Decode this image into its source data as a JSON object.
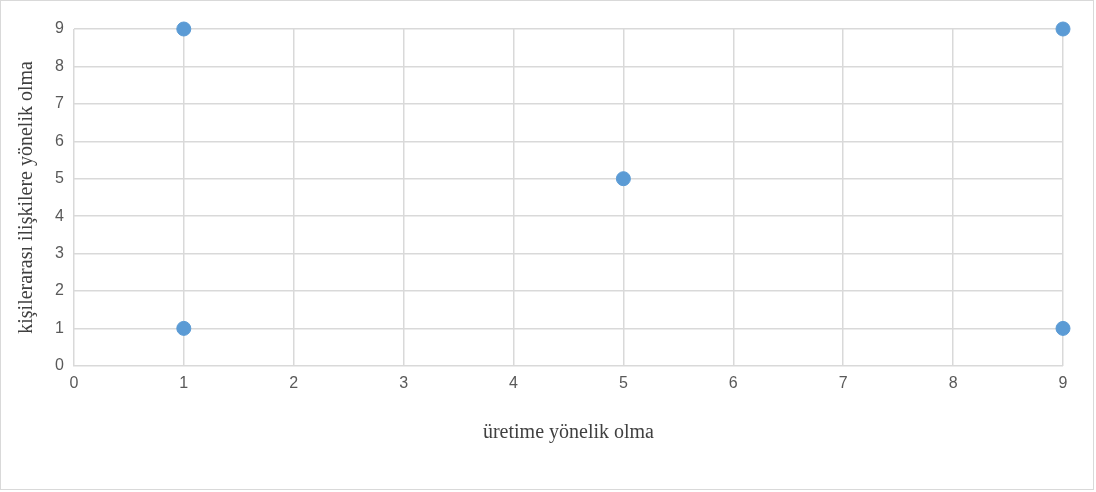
{
  "chart_data": {
    "type": "scatter",
    "xlabel": "üretime yönelik olma",
    "ylabel": "kişilerarası ilişkilere yönelik olma",
    "x": [
      1,
      1,
      5,
      9,
      9
    ],
    "series": [
      {
        "color": "#5b9bd5",
        "values": [
          9,
          1,
          5,
          9,
          1
        ]
      }
    ],
    "xlim": [
      0,
      9
    ],
    "ylim": [
      0,
      9
    ],
    "xticks": [
      0,
      1,
      2,
      3,
      4,
      5,
      6,
      7,
      8,
      9
    ],
    "yticks": [
      0,
      1,
      2,
      3,
      4,
      5,
      6,
      7,
      8,
      9
    ],
    "grid": true,
    "legend": false,
    "marker": "circle"
  }
}
